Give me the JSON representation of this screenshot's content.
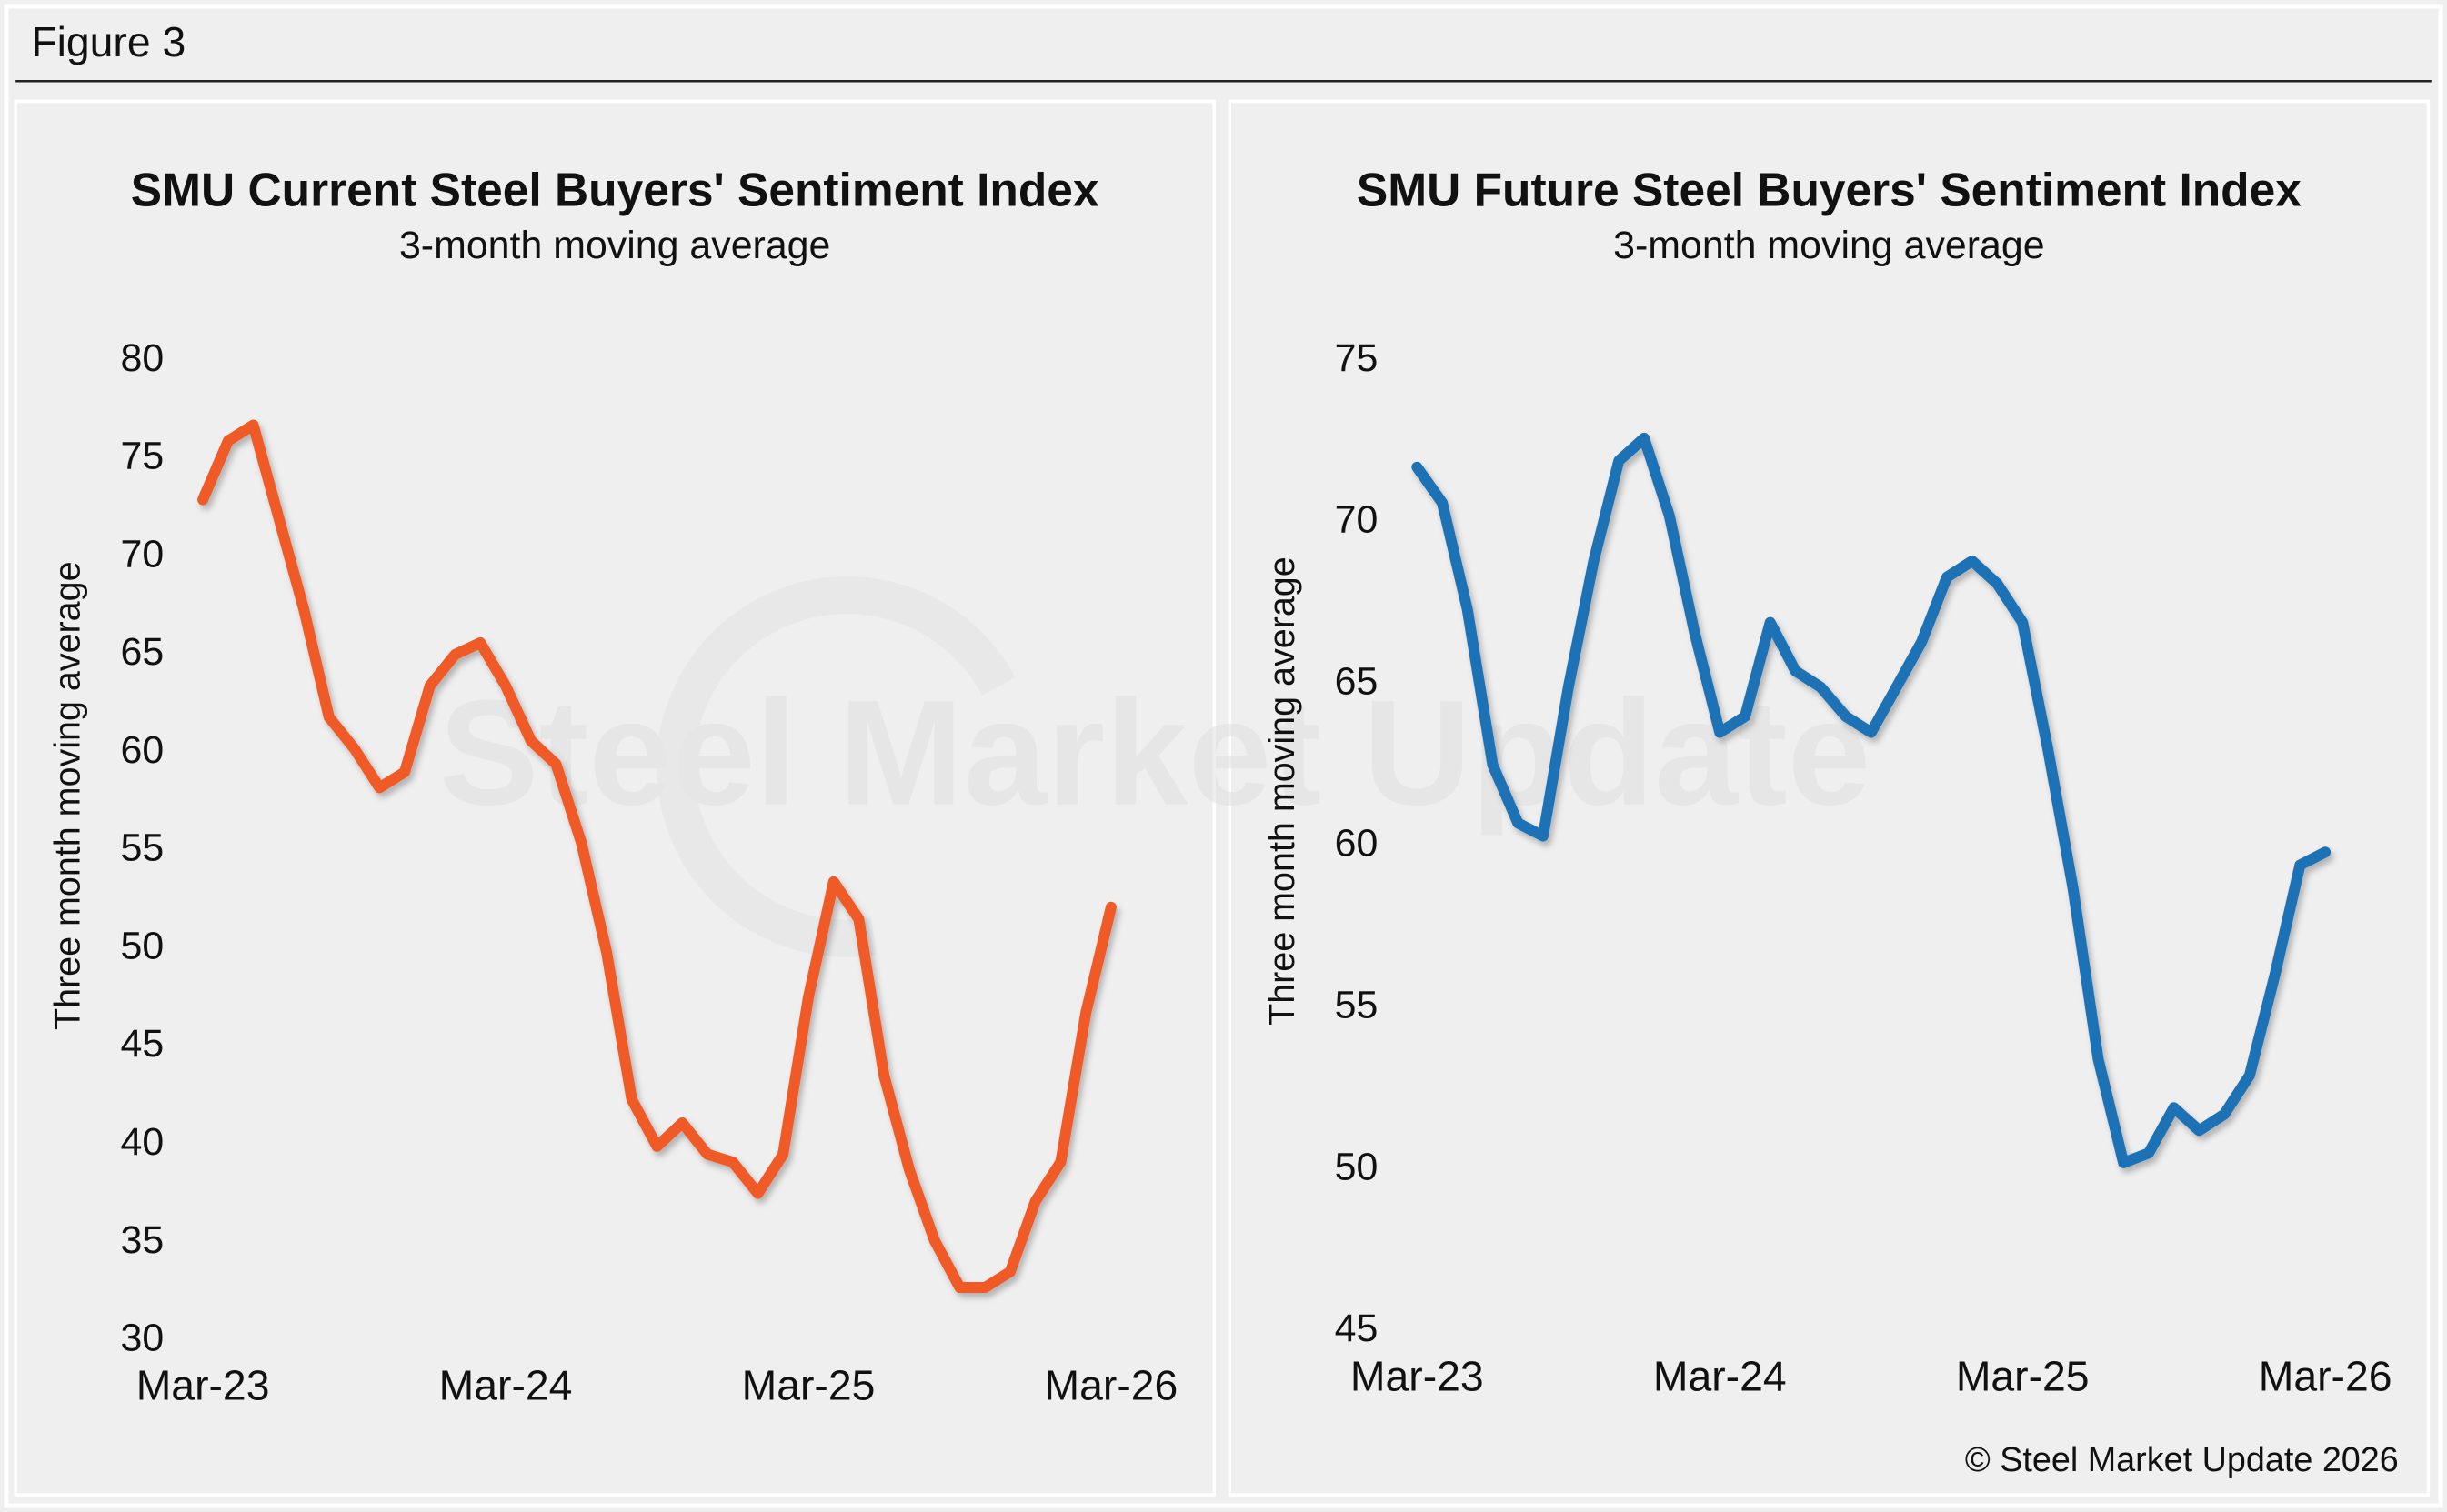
{
  "figure_label": "Figure 3",
  "copyright": "© Steel Market Update 2026",
  "watermark": "Steel Market Update",
  "chart_data": [
    {
      "type": "line",
      "title": "SMU Current Steel Buyers' Sentiment Index",
      "subtitle": "3-month moving average",
      "y_label": "Three month moving average",
      "categories": [
        "Mar-23",
        null,
        null,
        null,
        null,
        null,
        null,
        null,
        null,
        null,
        null,
        null,
        "Mar-24",
        null,
        null,
        null,
        null,
        null,
        null,
        null,
        null,
        null,
        null,
        null,
        "Mar-25",
        null,
        null,
        null,
        null,
        null,
        null,
        null,
        null,
        null,
        null,
        null,
        "Mar-26"
      ],
      "values": [
        72.9,
        75.9,
        76.7,
        72,
        67.3,
        61.8,
        60.2,
        58.2,
        59,
        63.4,
        65,
        65.6,
        63.4,
        60.6,
        59.4,
        55.4,
        49.8,
        42.3,
        39.9,
        41.1,
        39.5,
        39.1,
        37.5,
        39.5,
        47.5,
        53.4,
        51.5,
        43.5,
        38.7,
        35.1,
        32.7,
        32.7,
        33.5,
        37.1,
        39.1,
        46.7,
        52.1
      ],
      "color": "#f05a28",
      "ylim": [
        30,
        80
      ],
      "yticks": [
        30,
        35,
        40,
        45,
        50,
        55,
        60,
        65,
        70,
        75,
        80
      ]
    },
    {
      "type": "line",
      "title": "SMU Future Steel Buyers' Sentiment Index",
      "subtitle": "3-month moving average",
      "y_label": "Three month moving average",
      "categories": [
        "Mar-23",
        null,
        null,
        null,
        null,
        null,
        null,
        null,
        null,
        null,
        null,
        null,
        "Mar-24",
        null,
        null,
        null,
        null,
        null,
        null,
        null,
        null,
        null,
        null,
        null,
        "Mar-25",
        null,
        null,
        null,
        null,
        null,
        null,
        null,
        null,
        null,
        null,
        null,
        "Mar-26"
      ],
      "values": [
        71.7,
        70.6,
        67.3,
        62.5,
        60.7,
        60.3,
        64.9,
        68.8,
        71.9,
        72.6,
        70.2,
        66.6,
        63.5,
        64,
        66.9,
        65.4,
        64.9,
        64,
        63.5,
        64.9,
        66.3,
        68.3,
        68.8,
        68.1,
        66.9,
        63,
        58.7,
        53.4,
        50.2,
        50.5,
        51.9,
        51.2,
        51.7,
        52.9,
        56,
        59.4,
        59.8
      ],
      "color": "#1f72b4",
      "ylim": [
        45,
        75
      ],
      "yticks": [
        45,
        50,
        55,
        60,
        65,
        70,
        75
      ]
    }
  ]
}
